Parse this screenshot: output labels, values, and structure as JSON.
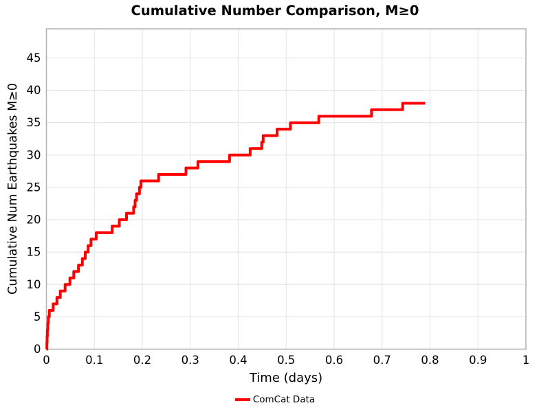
{
  "chart_data": {
    "type": "line",
    "title": "Cumulative Number Comparison, M≥0",
    "xlabel": "Time (days)",
    "ylabel": "Cumulative Num Earthquakes M≥0",
    "legend": {
      "position": "bottom-center",
      "entries": [
        {
          "label": "ComCat Data",
          "color": "#ff0000"
        }
      ]
    },
    "xlim": [
      0,
      1
    ],
    "ylim": [
      0,
      49.5
    ],
    "x_ticks": {
      "values": [
        0,
        0.1,
        0.2,
        0.3,
        0.4,
        0.5,
        0.6,
        0.7,
        0.8,
        0.9,
        1
      ],
      "labels": [
        "0",
        "0.1",
        "0.2",
        "0.3",
        "0.4",
        "0.5",
        "0.6",
        "0.7",
        "0.8",
        "0.9",
        "1"
      ]
    },
    "y_ticks": {
      "values": [
        0,
        5,
        10,
        15,
        20,
        25,
        30,
        35,
        40,
        45
      ],
      "labels": [
        "0",
        "5",
        "10",
        "15",
        "20",
        "25",
        "30",
        "35",
        "40",
        "45"
      ]
    },
    "grid": {
      "show": true,
      "color": "#e7e7e7"
    },
    "axes_border_color": "#b3b3b3",
    "series": [
      {
        "name": "ComCat Data",
        "color": "#ff0000",
        "line_width": 4,
        "style": "step-post",
        "start": [
          0,
          0
        ],
        "event_times": [
          0.001,
          0.0015,
          0.002,
          0.003,
          0.004,
          0.006,
          0.014,
          0.022,
          0.029,
          0.039,
          0.049,
          0.057,
          0.067,
          0.075,
          0.081,
          0.087,
          0.093,
          0.104,
          0.137,
          0.152,
          0.167,
          0.182,
          0.185,
          0.188,
          0.194,
          0.197,
          0.234,
          0.291,
          0.316,
          0.382,
          0.425,
          0.449,
          0.452,
          0.481,
          0.509,
          0.568,
          0.678,
          0.743
        ],
        "cumulative_values": [
          1,
          2,
          3,
          4,
          5,
          6,
          7,
          8,
          9,
          10,
          11,
          12,
          13,
          14,
          15,
          16,
          17,
          18,
          19,
          20,
          21,
          22,
          23,
          24,
          25,
          26,
          27,
          28,
          29,
          30,
          31,
          32,
          33,
          34,
          35,
          36,
          37,
          38
        ],
        "end_time": 0.79,
        "final_value": 38
      }
    ]
  }
}
